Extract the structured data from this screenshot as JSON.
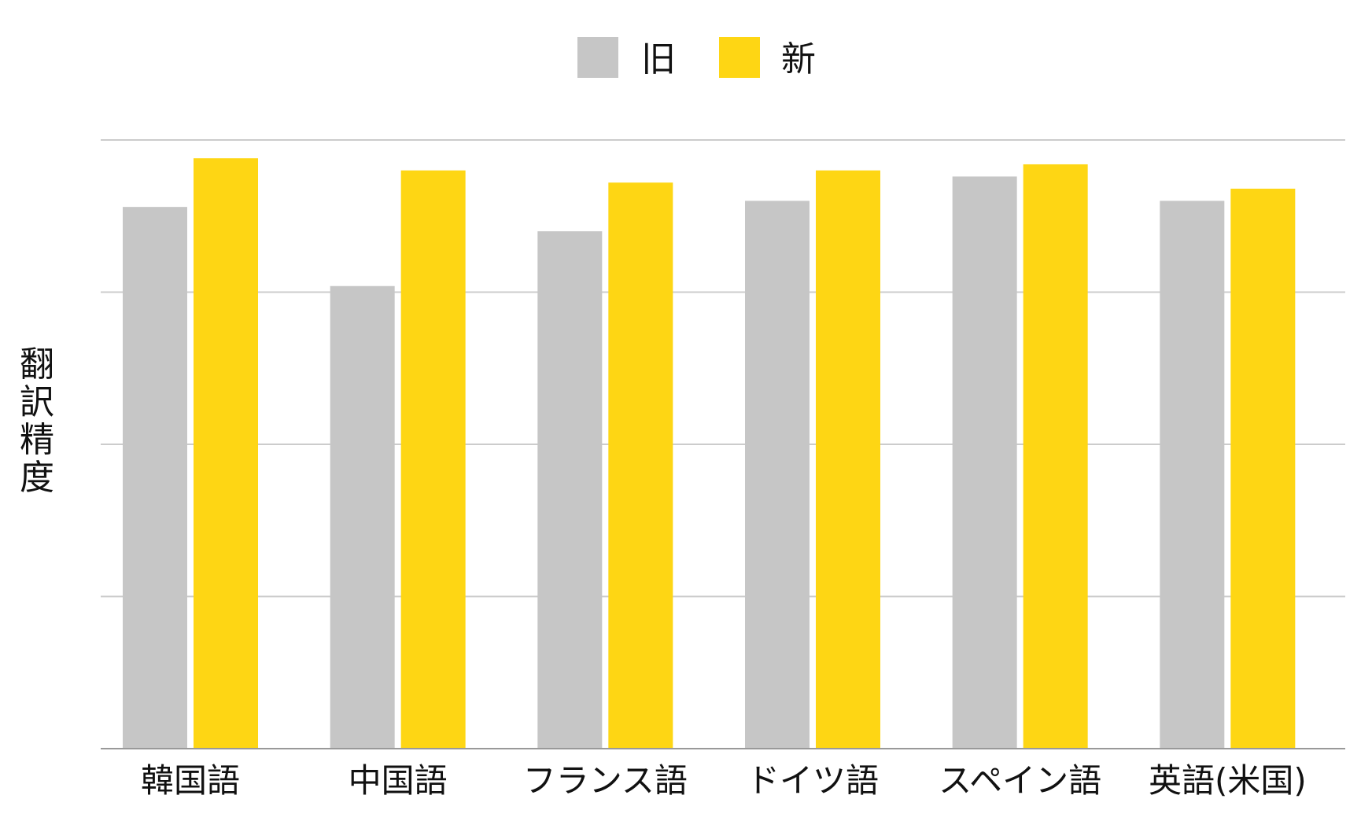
{
  "chart_data": {
    "type": "bar",
    "categories": [
      "韓国語",
      "中国語",
      "フランス語",
      "ドイツ語",
      "スペイン語",
      "英語(米国)"
    ],
    "series": [
      {
        "name": "旧",
        "color": "#c6c6c6",
        "values": [
          0.89,
          0.76,
          0.85,
          0.9,
          0.94,
          0.9
        ]
      },
      {
        "name": "新",
        "color": "#fed614",
        "values": [
          0.97,
          0.95,
          0.93,
          0.95,
          0.96,
          0.92
        ]
      }
    ],
    "ylabel": "翻訳精度",
    "ylim": [
      0,
      1
    ],
    "y_ticks_visible": false,
    "grid": true,
    "grid_color": "#cccccc",
    "legend_position": "top-center"
  }
}
